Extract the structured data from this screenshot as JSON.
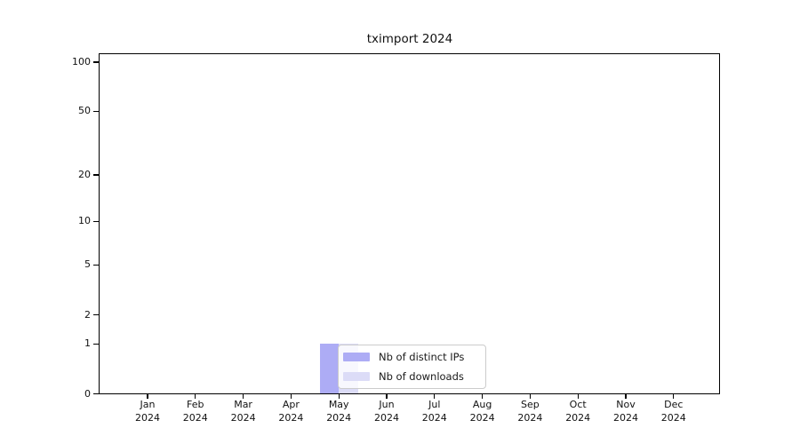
{
  "figure": {
    "background_color": "#ffffff",
    "text_color": "#111111"
  },
  "chart_data": {
    "type": "bar",
    "title": "tximport 2024",
    "xlabel": "",
    "ylabel": "",
    "year": "2024",
    "categories": [
      "Jan",
      "Feb",
      "Mar",
      "Apr",
      "May",
      "Jun",
      "Jul",
      "Aug",
      "Sep",
      "Oct",
      "Nov",
      "Dec"
    ],
    "series": [
      {
        "name": "Nb of distinct IPs",
        "color": "#adacf5",
        "values": [
          0,
          0,
          0,
          0,
          1,
          0,
          0,
          0,
          0,
          0,
          0,
          0
        ]
      },
      {
        "name": "Nb of downloads",
        "color": "#dcdcf7",
        "values": [
          0,
          0,
          0,
          0,
          1,
          0,
          0,
          0,
          0,
          0,
          0,
          0
        ]
      }
    ],
    "y_axis": {
      "scale": "log1p",
      "max": 100,
      "ticks": [
        0,
        1,
        2,
        5,
        10,
        20,
        50,
        100
      ],
      "major_gridlines": [
        1,
        10,
        100
      ],
      "minor_gridlines": [
        2,
        3,
        4,
        5,
        6,
        7,
        8,
        9,
        20,
        30,
        40,
        50,
        60,
        70,
        80,
        90
      ]
    },
    "grid": true,
    "legend": {
      "position": "lower center, over May bars",
      "entries": [
        "Nb of distinct IPs",
        "Nb of downloads"
      ]
    },
    "colors": {
      "major_grid": "#cfcfcf",
      "minor_grid": "#ececec",
      "axis": "#000000",
      "legend_border": "#cccccc"
    }
  }
}
